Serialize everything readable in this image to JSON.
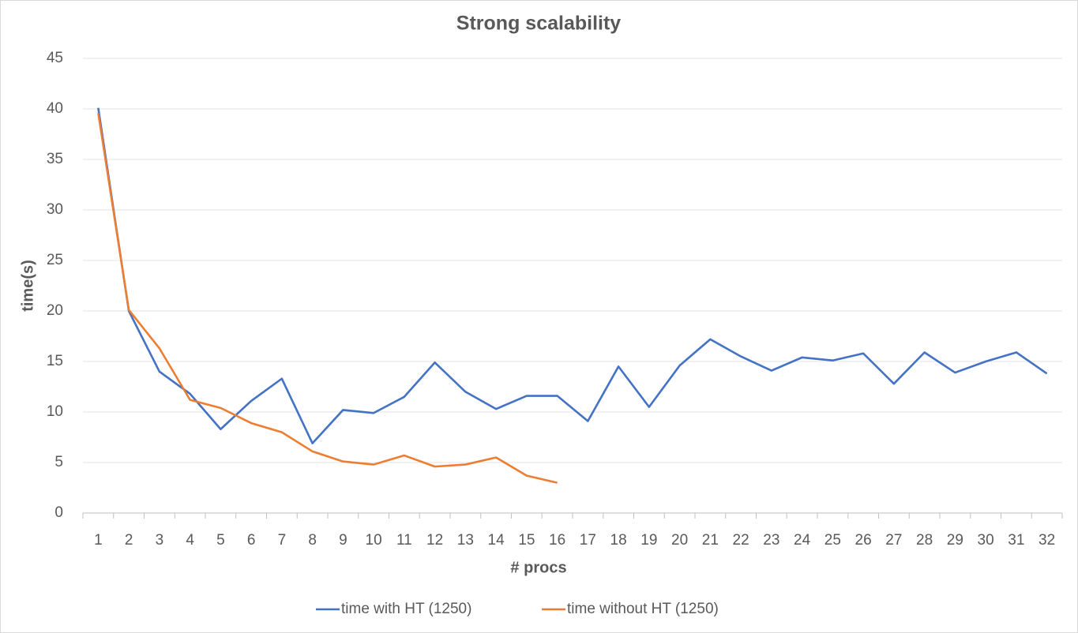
{
  "chart_data": {
    "type": "line",
    "title": "Strong scalability",
    "x_label": "# procs",
    "y_label": "time(s)",
    "categories": [
      "1",
      "2",
      "3",
      "4",
      "5",
      "6",
      "7",
      "8",
      "9",
      "10",
      "11",
      "12",
      "13",
      "14",
      "15",
      "16",
      "17",
      "18",
      "19",
      "20",
      "21",
      "22",
      "23",
      "24",
      "25",
      "26",
      "27",
      "28",
      "29",
      "30",
      "31",
      "32"
    ],
    "series": [
      {
        "name": "time with HT (1250)",
        "color": "#4472c4",
        "values": [
          40.1,
          20,
          14,
          11.8,
          8.3,
          11.1,
          13.3,
          6.9,
          10.2,
          9.9,
          11.5,
          14.9,
          12,
          10.3,
          11.6,
          11.6,
          9.1,
          14.5,
          10.5,
          14.6,
          17.2,
          15.5,
          14.1,
          15.4,
          15.1,
          15.8,
          12.8,
          15.9,
          13.9,
          15,
          15.9,
          13.8
        ]
      },
      {
        "name": "time without HT (1250)",
        "color": "#ed7d31",
        "values": [
          39.6,
          20.1,
          16.3,
          11.2,
          10.4,
          8.9,
          8,
          6.1,
          5.1,
          4.8,
          5.7,
          4.6,
          4.8,
          5.5,
          3.7,
          3,
          null,
          null,
          null,
          null,
          null,
          null,
          null,
          null,
          null,
          null,
          null,
          null,
          null,
          null,
          null,
          null
        ]
      }
    ],
    "ylim": [
      0,
      45
    ],
    "yticks": [
      0,
      5,
      10,
      15,
      20,
      25,
      30,
      35,
      40,
      45
    ],
    "grid": true,
    "legend": "bottom"
  }
}
